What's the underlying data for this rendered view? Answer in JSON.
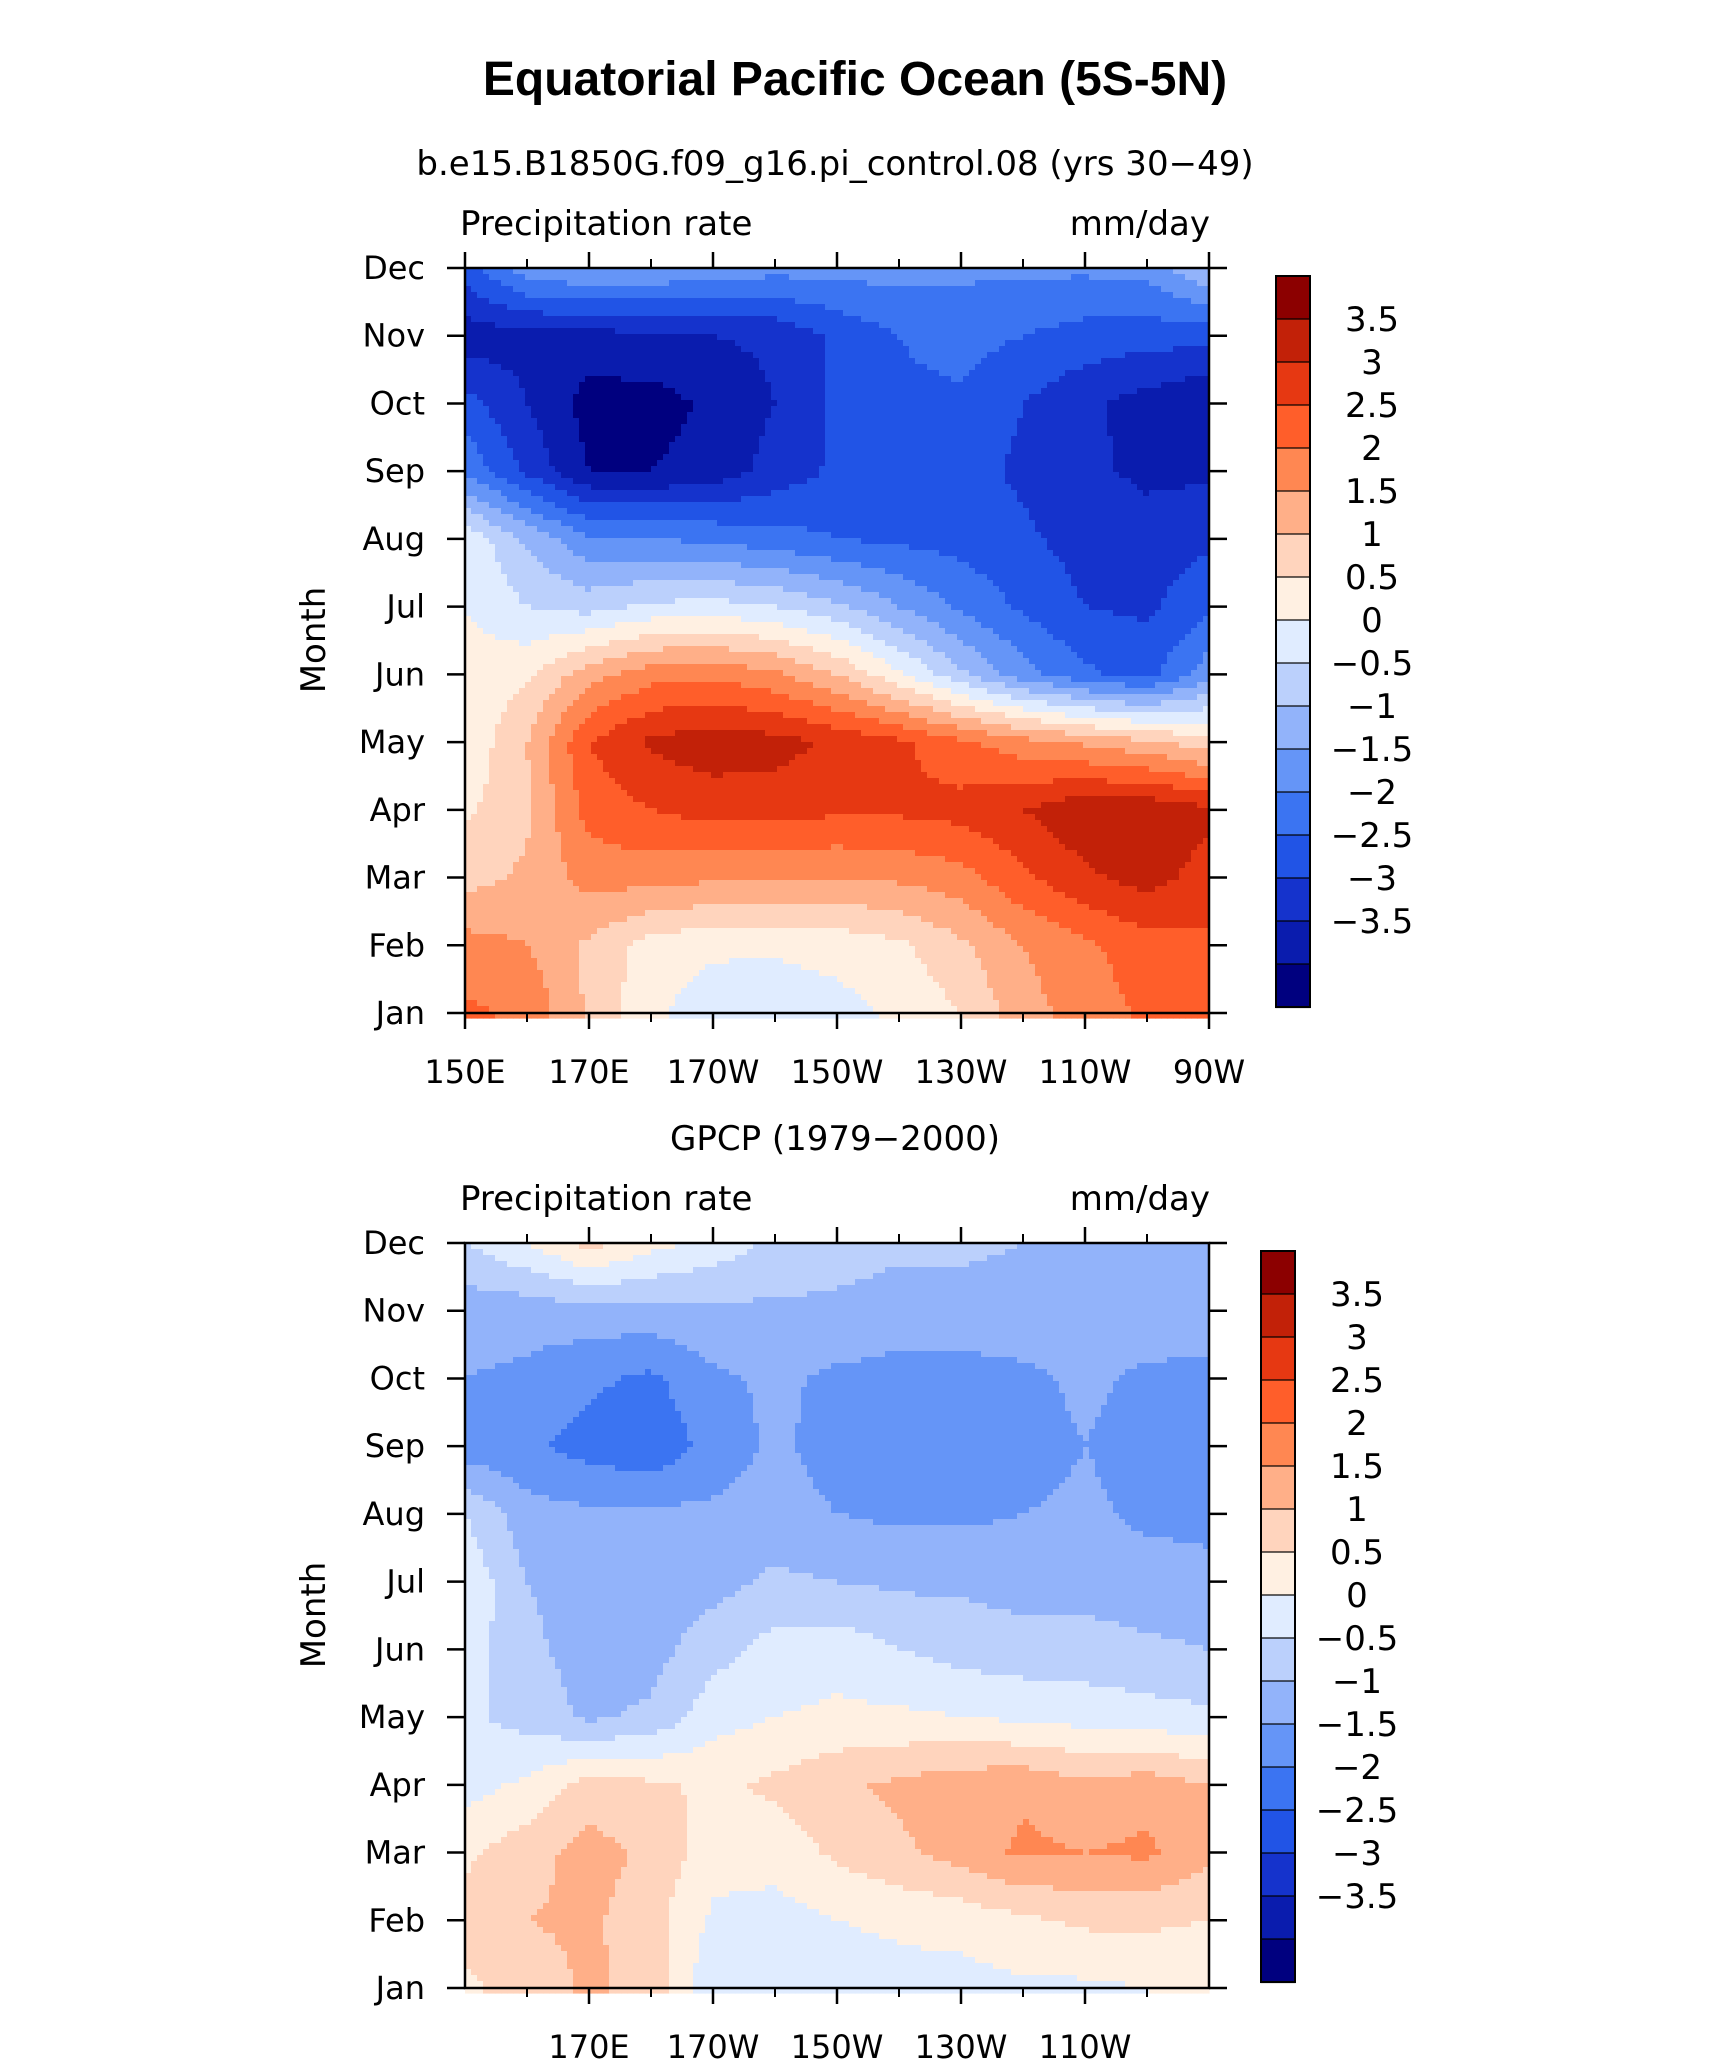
{
  "title": "Equatorial Pacific Ocean (5S-5N)",
  "palette": [
    "#00007f",
    "#0a1cae",
    "#1533cc",
    "#2154e6",
    "#3b74f2",
    "#6595f7",
    "#92b3fa",
    "#bbd0fc",
    "#e0ecff",
    "#fff0e2",
    "#ffd4bd",
    "#ffaf88",
    "#ff8752",
    "#ff5e2a",
    "#e63812",
    "#c22108",
    "#8c0000"
  ],
  "levels_labels": [
    "3.5",
    "3",
    "2.5",
    "2",
    "1.5",
    "1",
    "0.5",
    "0",
    "−0.5",
    "−1",
    "−1.5",
    "−2",
    "−2.5",
    "−3",
    "−3.5"
  ],
  "chart_data": [
    {
      "type": "heatmap",
      "title": "b.e15.B1850G.f09_g16.pi_control.08 (yrs 30−49)",
      "left_label": "Precipitation rate",
      "right_label": "mm/day",
      "ylabel": "Month",
      "xlabel": "",
      "x_ticks": [
        "150E",
        "170E",
        "170W",
        "150W",
        "130W",
        "110W",
        "90W"
      ],
      "x_range": [
        150,
        270
      ],
      "y_ticks": [
        "Jan",
        "Feb",
        "Mar",
        "Apr",
        "May",
        "Jun",
        "Jul",
        "Aug",
        "Sep",
        "Oct",
        "Nov",
        "Dec"
      ],
      "levels": [
        -3.5,
        -3,
        -2.5,
        -2,
        -1.5,
        -1,
        -0.5,
        0,
        0.5,
        1,
        1.5,
        2,
        2.5,
        3,
        3.5
      ],
      "colorbar_ticks": [
        "3.5",
        "3",
        "2.5",
        "2",
        "1.5",
        "1",
        "0.5",
        "0",
        "−0.5",
        "−1",
        "−1.5",
        "−2",
        "−2.5",
        "−3",
        "−3.5"
      ],
      "lon": [
        150,
        160,
        170,
        180,
        190,
        200,
        210,
        220,
        230,
        240,
        250,
        260,
        270
      ],
      "months": [
        "Jan",
        "Feb",
        "Mar",
        "Apr",
        "May",
        "Jun",
        "Jul",
        "Aug",
        "Sep",
        "Oct",
        "Nov",
        "Dec"
      ],
      "values": [
        [
          2.6,
          2.4,
          1.4,
          0.6,
          0.2,
          0.1,
          0.3,
          0.6,
          1.0,
          1.8,
          2.2,
          2.6,
          2.8
        ],
        [
          2.2,
          2.0,
          1.4,
          0.8,
          0.6,
          0.6,
          0.7,
          0.9,
          1.4,
          2.0,
          2.4,
          2.8,
          2.9
        ],
        [
          1.3,
          1.6,
          2.2,
          2.2,
          2.1,
          2.0,
          2.0,
          2.1,
          2.3,
          2.9,
          3.4,
          3.7,
          3.3
        ],
        [
          0.9,
          1.4,
          2.7,
          3.0,
          3.2,
          3.2,
          3.1,
          3.1,
          3.2,
          3.5,
          3.9,
          3.9,
          3.6
        ],
        [
          0.6,
          1.5,
          3.0,
          3.6,
          3.8,
          3.7,
          3.4,
          3.1,
          2.6,
          2.2,
          1.9,
          1.6,
          1.2
        ],
        [
          0.7,
          0.9,
          1.8,
          2.3,
          2.4,
          2.1,
          1.5,
          0.6,
          -0.4,
          -1.3,
          -1.9,
          -2.2,
          -1.2
        ],
        [
          0.5,
          0.0,
          -0.2,
          0.1,
          0.2,
          0.0,
          -0.4,
          -1.0,
          -1.6,
          -2.1,
          -2.5,
          -2.6,
          -2.1
        ],
        [
          0.4,
          -0.6,
          -1.4,
          -1.5,
          -1.6,
          -1.8,
          -2.0,
          -2.1,
          -2.2,
          -2.4,
          -2.7,
          -2.8,
          -2.6
        ],
        [
          -1.6,
          -2.6,
          -3.5,
          -3.5,
          -3.3,
          -2.8,
          -2.4,
          -2.2,
          -2.3,
          -2.6,
          -2.9,
          -3.1,
          -3.1
        ],
        [
          -2.3,
          -3.0,
          -3.7,
          -3.7,
          -3.4,
          -3.0,
          -2.4,
          -2.1,
          -2.1,
          -2.5,
          -2.9,
          -3.2,
          -3.5
        ],
        [
          -3.3,
          -3.2,
          -3.2,
          -3.1,
          -3.0,
          -2.9,
          -2.4,
          -2.0,
          -1.8,
          -2.0,
          -2.2,
          -2.3,
          -2.3
        ],
        [
          -2.2,
          -1.2,
          -0.9,
          -1.0,
          -1.2,
          -1.3,
          -1.3,
          -1.3,
          -1.4,
          -1.4,
          -1.4,
          -1.3,
          -0.5
        ]
      ]
    },
    {
      "type": "heatmap",
      "title": "GPCP (1979−2000)",
      "left_label": "Precipitation rate",
      "right_label": "mm/day",
      "ylabel": "Month",
      "xlabel": "",
      "x_ticks": [
        "170E",
        "170W",
        "150W",
        "130W",
        "110W"
      ],
      "x_range": [
        150,
        270
      ],
      "y_ticks": [
        "Jan",
        "Feb",
        "Mar",
        "Apr",
        "May",
        "Jun",
        "Jul",
        "Aug",
        "Sep",
        "Oct",
        "Nov",
        "Dec"
      ],
      "levels": [
        -3.5,
        -3,
        -2.5,
        -2,
        -1.5,
        -1,
        -0.5,
        0,
        0.5,
        1,
        1.5,
        2,
        2.5,
        3,
        3.5
      ],
      "colorbar_ticks": [
        "3.5",
        "3",
        "2.5",
        "2",
        "1.5",
        "1",
        "0.5",
        "0",
        "−0.5",
        "−1",
        "−1.5",
        "−2",
        "−2.5",
        "−3",
        "−3.5"
      ],
      "lon": [
        150,
        160,
        170,
        180,
        190,
        200,
        210,
        220,
        230,
        240,
        250,
        260,
        270
      ],
      "months": [
        "Jan",
        "Feb",
        "Mar",
        "Apr",
        "May",
        "Jun",
        "Jul",
        "Aug",
        "Sep",
        "Oct",
        "Nov",
        "Dec"
      ],
      "values": [
        [
          0.9,
          1.2,
          1.6,
          1.3,
          0.1,
          0.0,
          0.2,
          0.3,
          0.3,
          0.4,
          0.4,
          0.5,
          0.6
        ],
        [
          1.2,
          1.5,
          1.6,
          1.2,
          0.4,
          0.3,
          0.5,
          0.6,
          0.7,
          0.9,
          1.1,
          1.1,
          1.0
        ],
        [
          0.9,
          1.3,
          1.7,
          1.4,
          0.7,
          0.7,
          1.1,
          1.4,
          1.7,
          2.1,
          2.0,
          2.1,
          1.6
        ],
        [
          0.3,
          0.6,
          1.2,
          1.1,
          0.9,
          1.1,
          1.4,
          1.6,
          1.8,
          1.9,
          1.6,
          1.8,
          1.5
        ],
        [
          0.1,
          -0.2,
          -0.6,
          -0.4,
          0.3,
          0.5,
          0.6,
          0.6,
          0.5,
          0.4,
          0.3,
          0.2,
          0.1
        ],
        [
          0.3,
          -0.4,
          -0.7,
          -0.7,
          -0.2,
          0.2,
          0.3,
          0.0,
          -0.2,
          -0.3,
          -0.3,
          -0.4,
          -0.5
        ],
        [
          0.4,
          -0.5,
          -0.7,
          -0.7,
          -0.7,
          -0.4,
          -0.5,
          -0.6,
          -0.6,
          -0.7,
          -0.7,
          -0.8,
          -0.9
        ],
        [
          0.0,
          -0.8,
          -0.9,
          -0.9,
          -0.9,
          -0.8,
          -1.0,
          -1.1,
          -1.1,
          -1.0,
          -0.9,
          -1.1,
          -1.1
        ],
        [
          -1.3,
          -1.4,
          -1.7,
          -1.9,
          -1.3,
          -0.9,
          -1.2,
          -1.3,
          -1.3,
          -1.2,
          -1.0,
          -1.2,
          -1.2
        ],
        [
          -1.0,
          -1.1,
          -1.4,
          -1.6,
          -1.1,
          -0.9,
          -1.1,
          -1.2,
          -1.2,
          -1.1,
          -0.9,
          -1.1,
          -1.1
        ],
        [
          -0.8,
          -0.8,
          -0.7,
          -0.7,
          -0.6,
          -0.6,
          -0.6,
          -0.7,
          -0.7,
          -0.7,
          -0.7,
          -0.7,
          -0.8
        ],
        [
          0.0,
          0.5,
          1.2,
          0.7,
          0.3,
          -0.1,
          -0.3,
          -0.4,
          -0.4,
          -0.5,
          -0.5,
          -0.6,
          -0.6
        ]
      ]
    }
  ]
}
